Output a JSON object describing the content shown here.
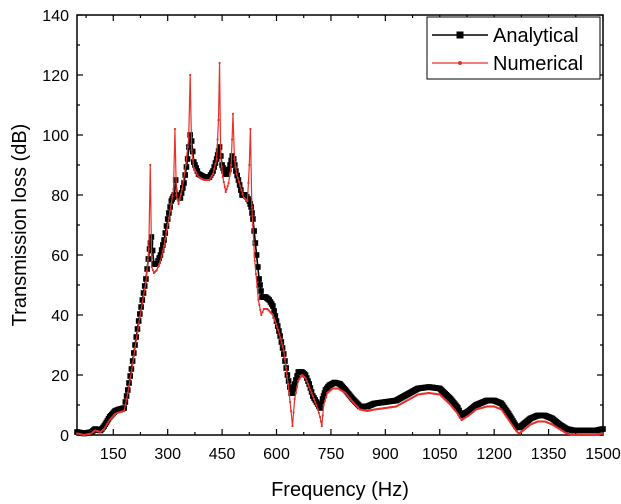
{
  "chart_data": {
    "type": "line",
    "title": "",
    "xlabel": "Frequency (Hz)",
    "ylabel": "Transmission loss (dB)",
    "xlim": [
      50,
      1500
    ],
    "ylim": [
      0,
      140
    ],
    "xticks": [
      150,
      300,
      450,
      600,
      750,
      900,
      1050,
      1200,
      1350,
      1500
    ],
    "yticks": [
      0,
      20,
      40,
      60,
      80,
      100,
      120,
      140
    ],
    "grid": false,
    "legend_position": "top-right",
    "series": [
      {
        "name": "Analytical",
        "color": "#000000",
        "marker": "square",
        "x": [
          50,
          70,
          90,
          100,
          115,
          125,
          140,
          155,
          165,
          180,
          190,
          200,
          210,
          220,
          230,
          240,
          250,
          255,
          262,
          270,
          280,
          290,
          300,
          310,
          318,
          322,
          326,
          335,
          345,
          355,
          362,
          366,
          372,
          385,
          400,
          415,
          425,
          435,
          443,
          450,
          458,
          465,
          472,
          478,
          482,
          488,
          495,
          505,
          515,
          525,
          530,
          535,
          545,
          552,
          560,
          570,
          580,
          590,
          600,
          610,
          620,
          630,
          640,
          645,
          650,
          660,
          670,
          680,
          690,
          700,
          710,
          720,
          727,
          735,
          745,
          760,
          775,
          790,
          810,
          830,
          850,
          870,
          900,
          930,
          960,
          990,
          1020,
          1050,
          1080,
          1100,
          1110,
          1130,
          1150,
          1180,
          1200,
          1220,
          1240,
          1260,
          1270,
          1280,
          1300,
          1320,
          1340,
          1360,
          1380,
          1400,
          1420,
          1440,
          1460,
          1480,
          1500
        ],
        "y": [
          1,
          0.5,
          1,
          2,
          1.5,
          3,
          6,
          8,
          8.5,
          9,
          15,
          22,
          30,
          38,
          45,
          52,
          62,
          66,
          57,
          57,
          60,
          65,
          72,
          78,
          80,
          85,
          80,
          79,
          84,
          92,
          100,
          98,
          91,
          87,
          86,
          86,
          88,
          92,
          96,
          90,
          87,
          87,
          90,
          93,
          92,
          88,
          85,
          80,
          80,
          78,
          76,
          72,
          60,
          52,
          46,
          46,
          45,
          43,
          38,
          33,
          27,
          20,
          14,
          14,
          17,
          21,
          21,
          20,
          17,
          13,
          11,
          9,
          12,
          15,
          16.5,
          17.5,
          17,
          15,
          12,
          9.5,
          9.5,
          10.5,
          11,
          11.5,
          13.5,
          15.5,
          16,
          15.5,
          12,
          9,
          6.5,
          8,
          10,
          11.5,
          11.5,
          10.5,
          7,
          3,
          2.5,
          3.5,
          5.5,
          6.5,
          6.5,
          5.5,
          3.5,
          2,
          1.5,
          1.5,
          1.5,
          1.5,
          2
        ]
      },
      {
        "name": "Numerical",
        "color": "#e8312a",
        "marker": "dot",
        "x": [
          50,
          70,
          90,
          100,
          115,
          125,
          140,
          155,
          165,
          180,
          190,
          200,
          210,
          220,
          230,
          240,
          248,
          252,
          256,
          262,
          270,
          280,
          290,
          300,
          310,
          316,
          320,
          324,
          330,
          340,
          350,
          358,
          362,
          366,
          372,
          385,
          400,
          415,
          425,
          435,
          440,
          443,
          446,
          452,
          460,
          468,
          475,
          480,
          484,
          490,
          500,
          510,
          520,
          525,
          528,
          532,
          540,
          550,
          558,
          565,
          575,
          590,
          605,
          620,
          632,
          640,
          644,
          650,
          660,
          670,
          680,
          690,
          700,
          710,
          720,
          725,
          730,
          740,
          755,
          770,
          790,
          810,
          830,
          850,
          870,
          900,
          930,
          960,
          990,
          1020,
          1050,
          1080,
          1100,
          1110,
          1130,
          1150,
          1180,
          1200,
          1220,
          1240,
          1260,
          1268,
          1280,
          1300,
          1320,
          1340,
          1360,
          1380,
          1400,
          1420,
          1440,
          1460,
          1480,
          1500
        ],
        "y": [
          0.5,
          0,
          0.5,
          1.5,
          1,
          2,
          5,
          7,
          7.5,
          8,
          14,
          21,
          29,
          37,
          44,
          51,
          62,
          90,
          56,
          54,
          55,
          58,
          63,
          70,
          77,
          82,
          102,
          80,
          77,
          82,
          90,
          99,
          120,
          95,
          89,
          86,
          85,
          85,
          87,
          92,
          105,
          124,
          93,
          86,
          81,
          84,
          90,
          107,
          92,
          87,
          83,
          79,
          78,
          90,
          102,
          76,
          58,
          45,
          40,
          42,
          42,
          40,
          35,
          28,
          17,
          8,
          3,
          12,
          18,
          20,
          19,
          16,
          13,
          10,
          6,
          3,
          10,
          14,
          15.5,
          15.5,
          14,
          11,
          8.5,
          8,
          8.5,
          9,
          9.5,
          11.5,
          13.5,
          14,
          13.5,
          10,
          7,
          5,
          6.5,
          8.5,
          9.5,
          9.5,
          8.5,
          5,
          1.5,
          0.5,
          1.5,
          3.5,
          4.5,
          4.5,
          3.5,
          2,
          0.5,
          0,
          0,
          0,
          0,
          0.5
        ]
      }
    ]
  }
}
